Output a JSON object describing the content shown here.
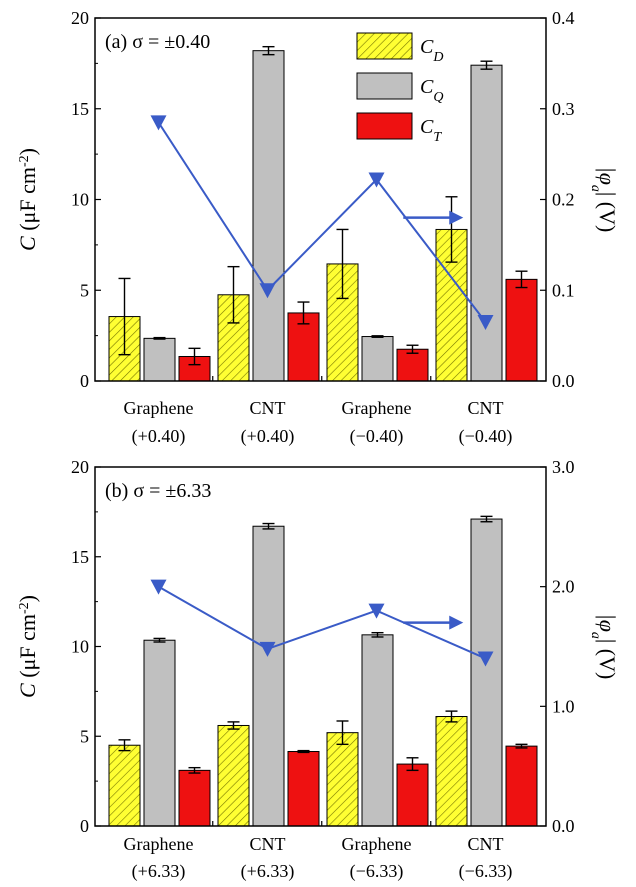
{
  "colors": {
    "C_D": "#ffff33",
    "C_Q": "#c0c0c0",
    "C_T": "#ee1111",
    "hatch": "#777700",
    "phi": "#3a5bc7"
  },
  "legend": [
    {
      "key": "C_D",
      "main": "C",
      "sub": "D"
    },
    {
      "key": "C_Q",
      "main": "C",
      "sub": "Q"
    },
    {
      "key": "C_T",
      "main": "C",
      "sub": "T"
    }
  ],
  "chart_data": [
    {
      "type": "bar",
      "panel_label": "(a) σ = ±0.40",
      "categories": [
        [
          "Graphene",
          "(+0.40)"
        ],
        [
          "CNT",
          "(+0.40)"
        ],
        [
          "Graphene",
          "(−0.40)"
        ],
        [
          "CNT",
          "(−0.40)"
        ]
      ],
      "ylabel": {
        "main": "C",
        "unit": " (μF cm",
        "sup": "-2",
        "close": ")"
      },
      "y2label": {
        "main": "|φ",
        "sub": "a",
        "rest": "| (V)"
      },
      "ylim": [
        0,
        20
      ],
      "yticks": [
        "0",
        "5",
        "10",
        "15",
        "20"
      ],
      "y2lim": [
        0,
        0.4
      ],
      "y2ticks": [
        "0.0",
        "0.1",
        "0.2",
        "0.3",
        "0.4"
      ],
      "series": [
        {
          "name": "C_D",
          "values": [
            3.55,
            4.75,
            6.45,
            8.35
          ],
          "errors": [
            2.1,
            1.55,
            1.9,
            1.8
          ]
        },
        {
          "name": "C_Q",
          "values": [
            2.35,
            18.2,
            2.45,
            17.4
          ],
          "errors": [
            0.04,
            0.22,
            0.04,
            0.22
          ]
        },
        {
          "name": "C_T",
          "values": [
            1.35,
            3.75,
            1.75,
            5.6
          ],
          "errors": [
            0.45,
            0.6,
            0.22,
            0.45
          ]
        }
      ],
      "line_series": {
        "name": "|φ_a|",
        "axis": "right",
        "values": [
          0.285,
          0.1,
          0.222,
          0.065
        ]
      },
      "arrow": {
        "from_x": 2.7,
        "to_x": 3.25,
        "y2": 0.18
      }
    },
    {
      "type": "bar",
      "panel_label": "(b) σ = ±6.33",
      "categories": [
        [
          "Graphene",
          "(+6.33)"
        ],
        [
          "CNT",
          "(+6.33)"
        ],
        [
          "Graphene",
          "(−6.33)"
        ],
        [
          "CNT",
          "(−6.33)"
        ]
      ],
      "ylabel": {
        "main": "C",
        "unit": " (μF cm",
        "sup": "-2",
        "close": ")"
      },
      "y2label": {
        "main": "|φ",
        "sub": "a",
        "rest": "| (V)"
      },
      "ylim": [
        0,
        20
      ],
      "yticks": [
        "0",
        "5",
        "10",
        "15",
        "20"
      ],
      "y2lim": [
        0,
        3
      ],
      "y2ticks": [
        "0.0",
        "1.0",
        "2.0",
        "3.0"
      ],
      "series": [
        {
          "name": "C_D",
          "values": [
            4.5,
            5.6,
            5.2,
            6.1
          ],
          "errors": [
            0.3,
            0.2,
            0.65,
            0.3
          ]
        },
        {
          "name": "C_Q",
          "values": [
            10.35,
            16.7,
            10.65,
            17.1
          ],
          "errors": [
            0.1,
            0.15,
            0.12,
            0.15
          ]
        },
        {
          "name": "C_T",
          "values": [
            3.1,
            4.15,
            3.45,
            4.45
          ],
          "errors": [
            0.15,
            0.05,
            0.35,
            0.1
          ]
        }
      ],
      "line_series": {
        "name": "|φ_a|",
        "axis": "right",
        "values": [
          2.0,
          1.48,
          1.8,
          1.4
        ]
      },
      "arrow": {
        "from_x": 2.7,
        "to_x": 3.25,
        "y2": 1.7
      }
    }
  ]
}
